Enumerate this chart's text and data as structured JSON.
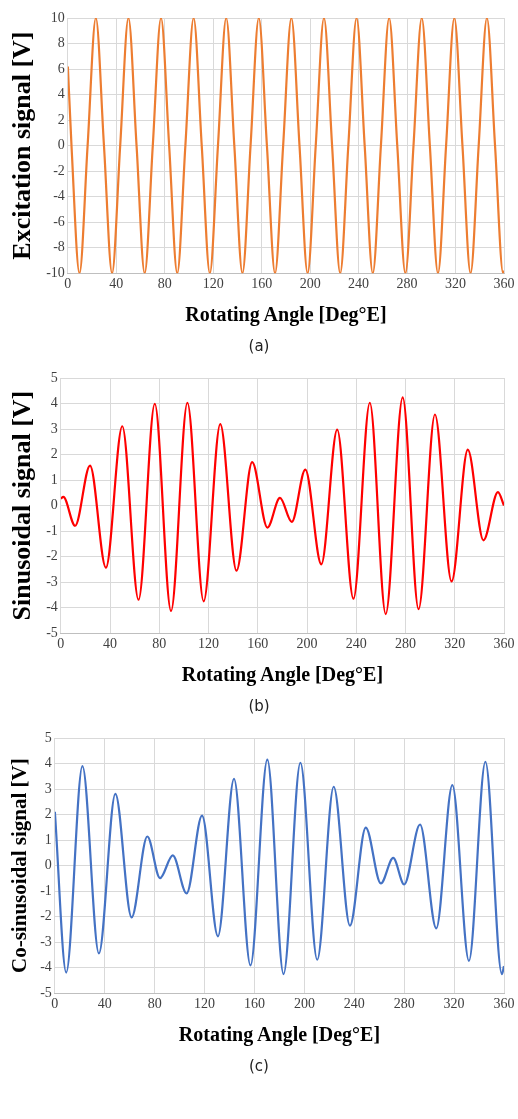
{
  "chart_data": [
    {
      "type": "line",
      "xlabel": "Rotating Angle [Deg°E]",
      "ylabel": "Excitation signal [V]",
      "annotations": [
        "(a)"
      ],
      "xlim": [
        0,
        360
      ],
      "xticks": [
        0,
        40,
        80,
        120,
        160,
        200,
        240,
        280,
        320,
        360
      ],
      "ylim": [
        -10,
        10
      ],
      "yticks": [
        -10,
        -8,
        -6,
        -4,
        -2,
        0,
        2,
        4,
        6,
        8,
        10
      ],
      "grid": true,
      "legend": false,
      "series": [
        {
          "color": "#ed7d31",
          "x": [
            0,
            3,
            9.6,
            16.3,
            23.1,
            29.8,
            36.5,
            43.2,
            50.0,
            56.7,
            63.4,
            70.1,
            76.9,
            83.6,
            90.3,
            97.0,
            103.8,
            110.5,
            117.2,
            123.9,
            130.7,
            137.4,
            144.1,
            150.8,
            157.6,
            164.3,
            171.0,
            177.7,
            184.5,
            191.2,
            197.9,
            204.6,
            211.4,
            218.1,
            224.8,
            231.5,
            238.3,
            245.0,
            251.7,
            258.4,
            265.2,
            271.9,
            278.6,
            285.3,
            292.1,
            298.8,
            305.5,
            312.2,
            319.0,
            325.7,
            332.4,
            339.1,
            345.9,
            352.6,
            359.3,
            360
          ],
          "values": [
            6.2,
            0,
            -10,
            0,
            10,
            0,
            -10,
            0,
            10,
            0,
            -10,
            0,
            10,
            0,
            -10,
            0,
            10,
            0,
            -10,
            0,
            10,
            0,
            -10,
            0,
            10,
            0,
            -10,
            0,
            10,
            0,
            -10,
            0,
            10,
            0,
            -10,
            0,
            10,
            0,
            -10,
            0,
            10,
            0,
            -10,
            0,
            10,
            0,
            -10,
            0,
            10,
            0,
            -10,
            0,
            10,
            0,
            -10,
            -9.8
          ]
        }
      ]
    },
    {
      "type": "line",
      "xlabel": "Rotating Angle [Deg°E]",
      "ylabel": "Sinusoidal signal [V]",
      "annotations": [
        "(b)"
      ],
      "xlim": [
        0,
        360
      ],
      "xticks": [
        0,
        40,
        80,
        120,
        160,
        200,
        240,
        280,
        320,
        360
      ],
      "ylim": [
        -5,
        5
      ],
      "yticks": [
        -5,
        -4,
        -3,
        -2,
        -1,
        0,
        1,
        2,
        3,
        4,
        5
      ],
      "grid": true,
      "legend": false,
      "series": [
        {
          "color": "#ff0000",
          "x": [
            0,
            2,
            11.6,
            23.7,
            36.6,
            49.9,
            63.1,
            76.3,
            89.5,
            102.8,
            116.0,
            129.5,
            142.7,
            155.4,
            167.8,
            178.0,
            187.6,
            198.6,
            211.6,
            224.5,
            237.7,
            251.0,
            263.9,
            277.7,
            290.6,
            303.9,
            317.4,
            330.6,
            343.3,
            355.1,
            360
          ],
          "values": [
            0.28,
            0.34,
            -0.79,
            1.57,
            -2.43,
            3.11,
            -3.69,
            3.99,
            -4.13,
            4.03,
            -3.75,
            3.19,
            -2.55,
            1.7,
            -0.86,
            0.3,
            -0.64,
            1.41,
            -2.3,
            2.98,
            -3.65,
            4.03,
            -4.25,
            4.24,
            -4.06,
            3.57,
            -2.97,
            2.19,
            -1.36,
            0.53,
            0
          ]
        }
      ]
    },
    {
      "type": "line",
      "xlabel": "Rotating Angle [Deg°E]",
      "ylabel": "Co-sinusoidal signal [V]",
      "annotations": [
        "(c)"
      ],
      "xlim": [
        0,
        360
      ],
      "xticks": [
        0,
        40,
        80,
        120,
        160,
        200,
        240,
        280,
        320,
        360
      ],
      "ylim": [
        -5,
        5
      ],
      "yticks": [
        -5,
        -4,
        -3,
        -2,
        -1,
        0,
        1,
        2,
        3,
        4,
        5
      ],
      "grid": true,
      "legend": false,
      "series": [
        {
          "color": "#4472c4",
          "x": [
            0,
            9.1,
            22.1,
            35.3,
            48.5,
            61.5,
            74.1,
            84.3,
            94.5,
            105.6,
            118.0,
            130.7,
            143.6,
            156.8,
            170.3,
            183.3,
            196.8,
            210.3,
            223.5,
            236.5,
            249.2,
            261.3,
            271.2,
            280.0,
            292.7,
            305.7,
            318.6,
            331.9,
            345.1,
            358.3,
            360
          ],
          "values": [
            2.11,
            -4.19,
            3.9,
            -3.44,
            2.81,
            -2.03,
            1.14,
            -0.49,
            0.4,
            -1.09,
            1.96,
            -2.77,
            3.4,
            -3.91,
            4.15,
            -4.25,
            4.03,
            -3.69,
            3.09,
            -2.35,
            1.49,
            -0.7,
            0.3,
            -0.74,
            1.61,
            -2.46,
            3.15,
            -3.73,
            4.07,
            -4.25,
            -3.94
          ]
        }
      ]
    }
  ]
}
